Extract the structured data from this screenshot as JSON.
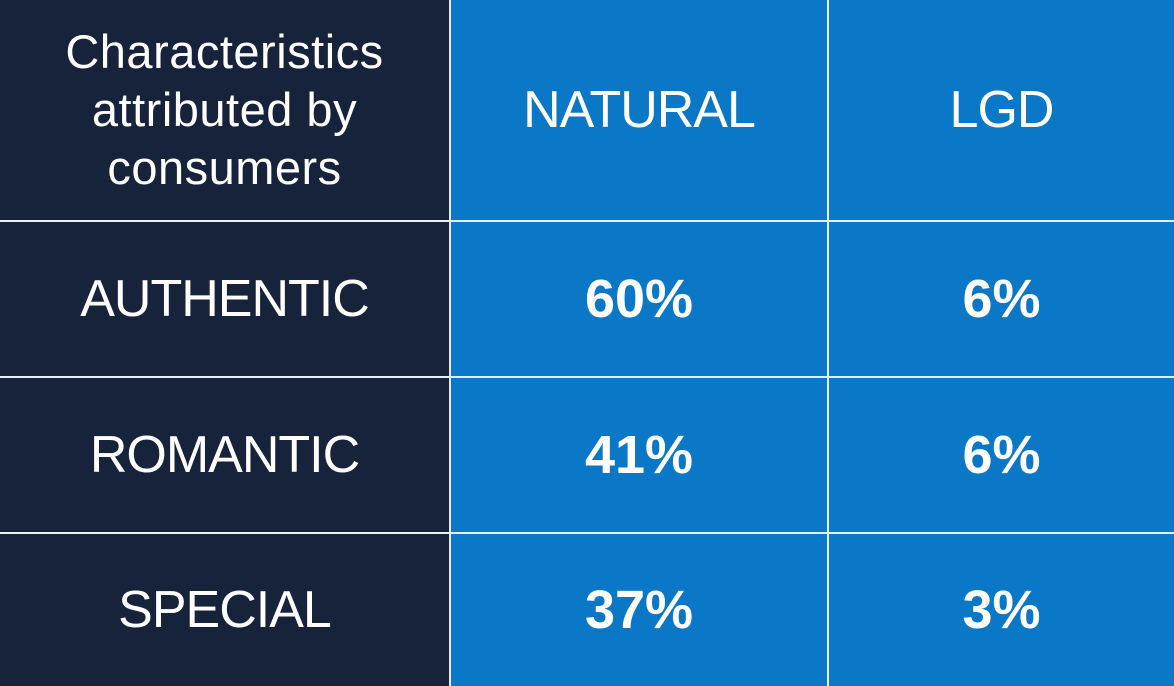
{
  "table": {
    "header": [
      "Characteristics attributed by consumers",
      "NATURAL",
      "LGD"
    ],
    "rows": [
      [
        "AUTHENTIC",
        "60%",
        "6%"
      ],
      [
        "ROMANTIC",
        "41%",
        "6%"
      ],
      [
        "SPECIAL",
        "37%",
        "3%"
      ]
    ]
  }
}
